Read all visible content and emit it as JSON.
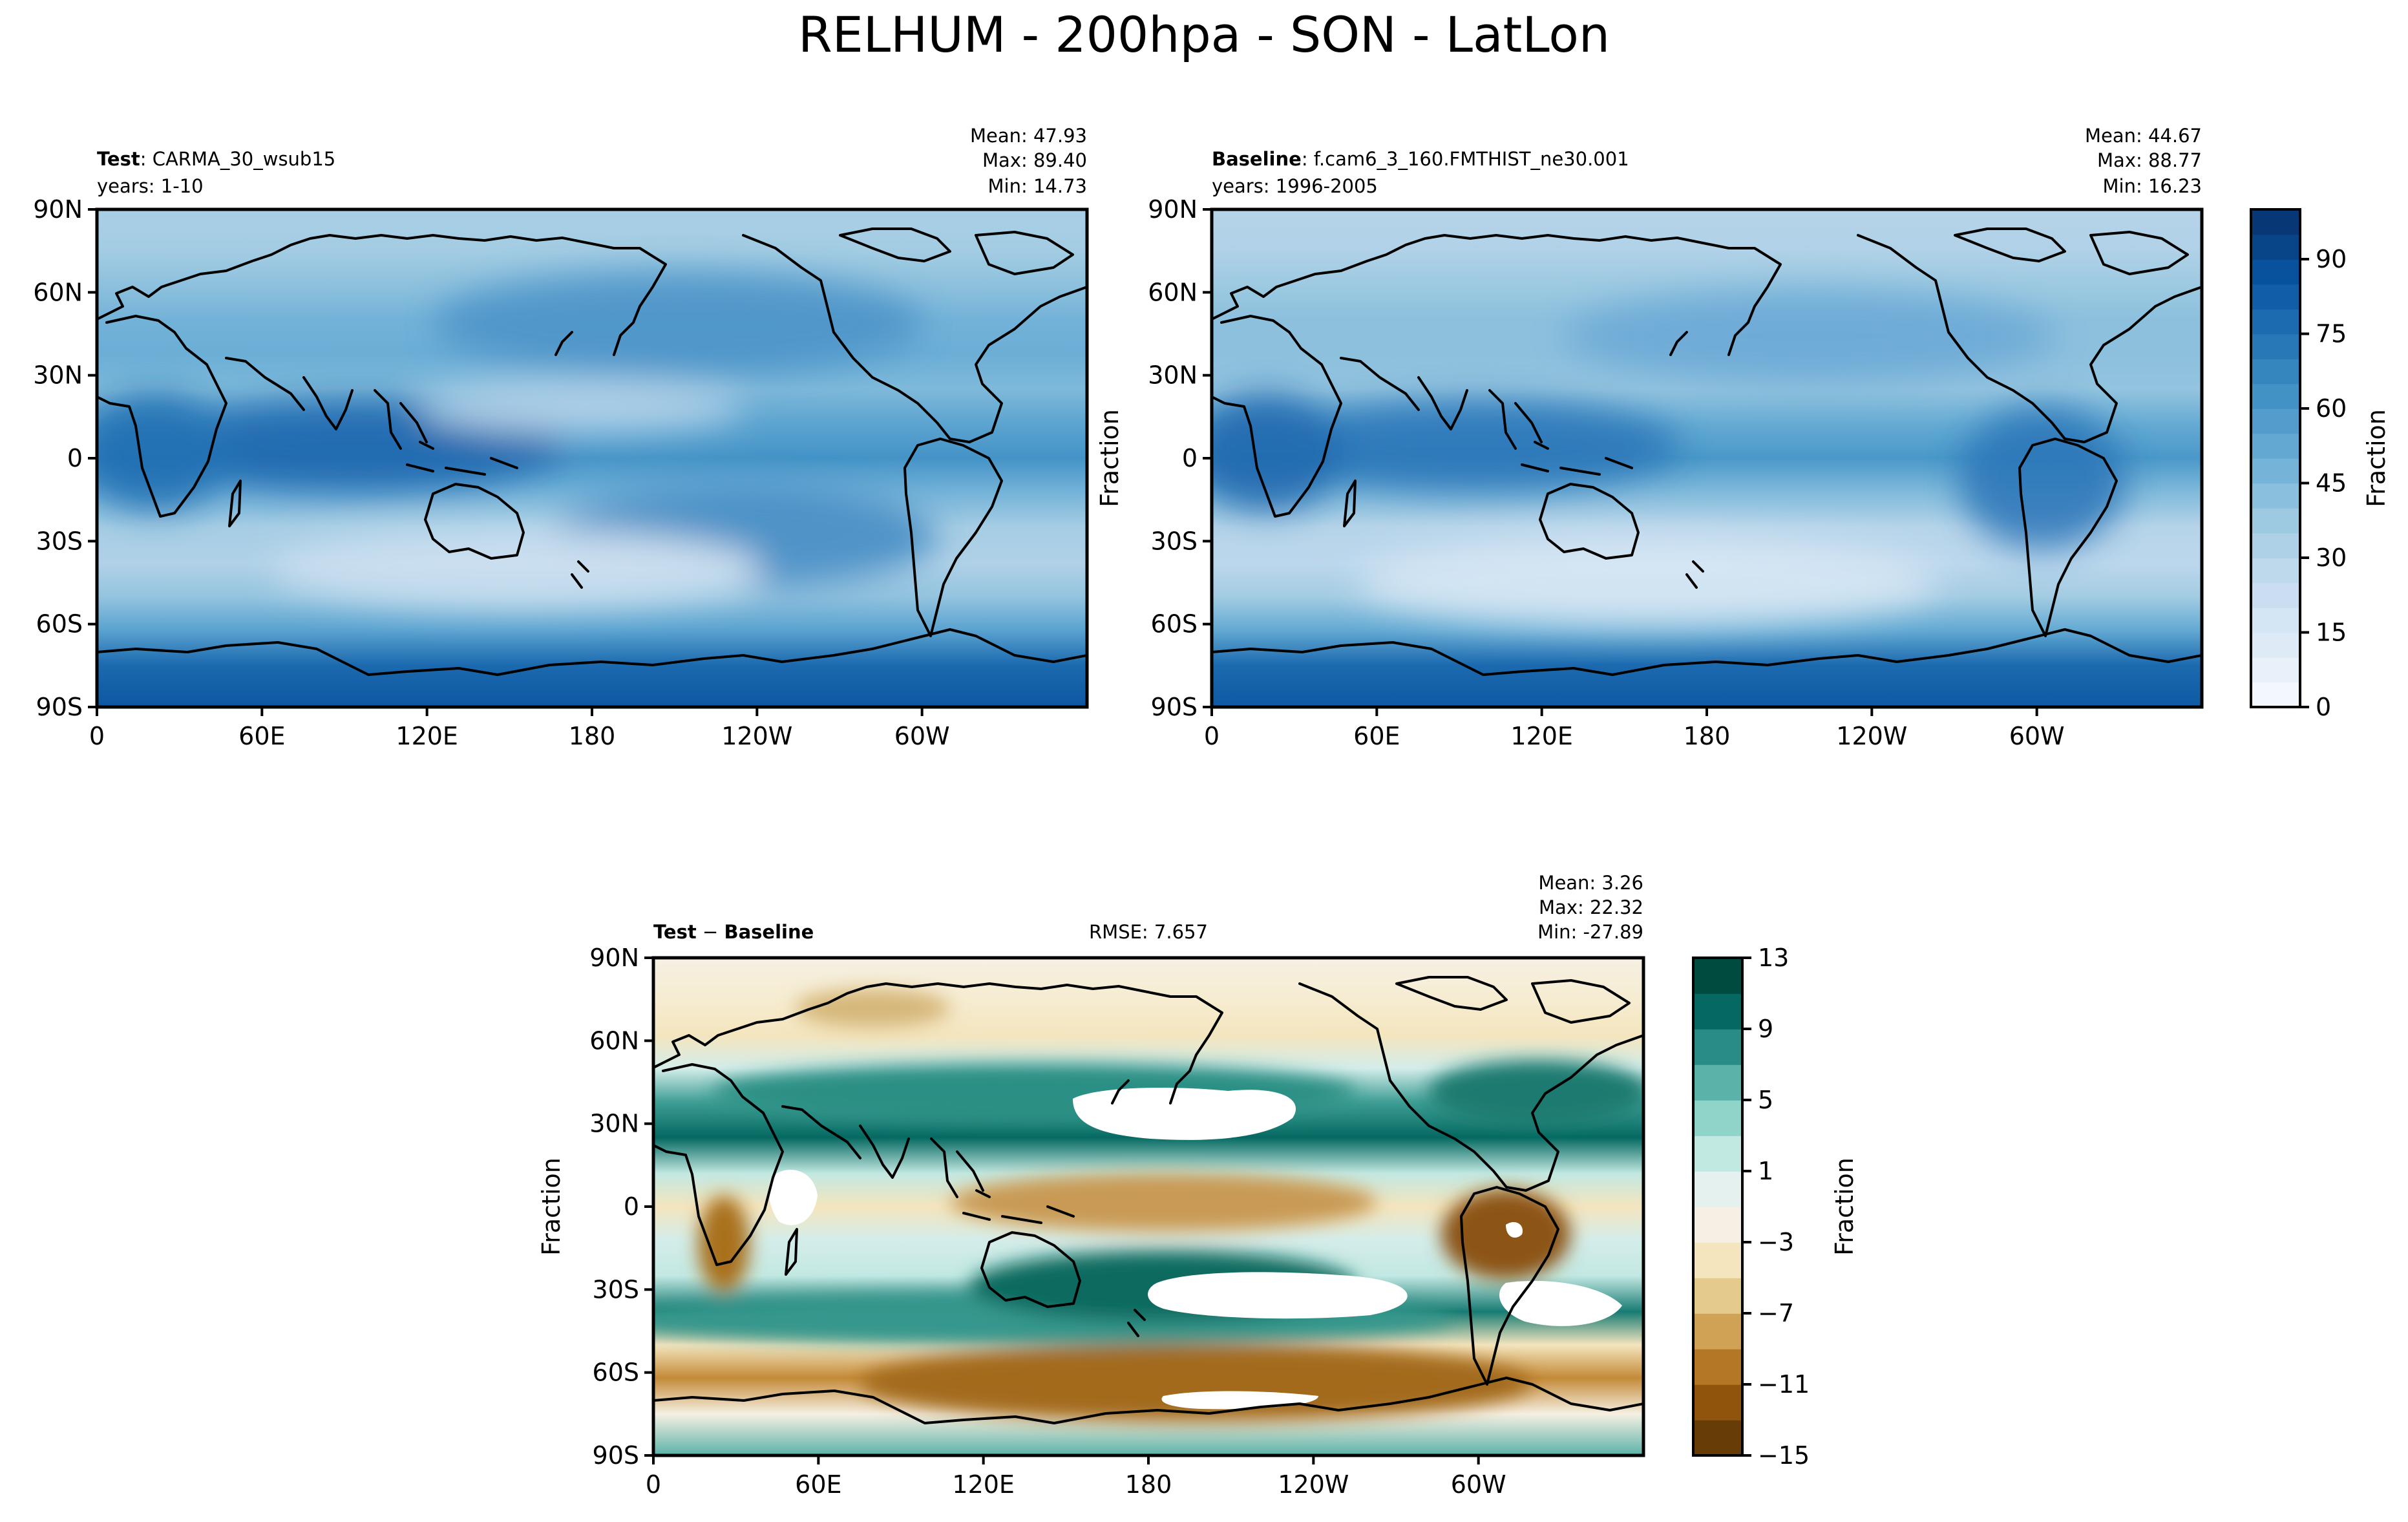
{
  "figure": {
    "title": "RELHUM - 200hpa - SON - LatLon"
  },
  "chart_data": [
    {
      "type": "heatmap",
      "panel": "test",
      "label_bold": "Test",
      "label_rest": ": CARMA_30_wsub15",
      "subtitle": "years: 1-10",
      "stats": {
        "mean": "Mean: 47.93",
        "max": "Max: 89.40",
        "min": "Min: 14.73"
      },
      "ylabel": "",
      "xlim": [
        0,
        360
      ],
      "ylim": [
        -90,
        90
      ],
      "x_ticks": [
        "0",
        "60E",
        "120E",
        "180",
        "120W",
        "60W"
      ],
      "y_ticks": [
        "90N",
        "60N",
        "30N",
        "0",
        "30S",
        "60S",
        "90S"
      ],
      "colormap": "Blues",
      "zonal_profile": {
        "lat": [
          -90,
          -75,
          -62,
          -50,
          -38,
          -25,
          -12,
          0,
          12,
          25,
          38,
          50,
          62,
          75,
          90
        ],
        "value": [
          85,
          78,
          55,
          40,
          32,
          35,
          48,
          62,
          55,
          45,
          50,
          48,
          42,
          36,
          34
        ]
      }
    },
    {
      "type": "heatmap",
      "panel": "baseline",
      "label_bold": "Baseline",
      "label_rest": ": f.cam6_3_160.FMTHIST_ne30.001",
      "subtitle": "years: 1996-2005",
      "stats": {
        "mean": "Mean: 44.67",
        "max": "Max: 88.77",
        "min": "Min: 16.23"
      },
      "ylabel": "Fraction",
      "xlim": [
        0,
        360
      ],
      "ylim": [
        -90,
        90
      ],
      "x_ticks": [
        "0",
        "60E",
        "120E",
        "180",
        "120W",
        "60W"
      ],
      "y_ticks": [
        "90N",
        "60N",
        "30N",
        "0",
        "30S",
        "60S",
        "90S"
      ],
      "colormap": "Blues",
      "zonal_profile": {
        "lat": [
          -90,
          -75,
          -62,
          -50,
          -38,
          -25,
          -12,
          0,
          12,
          25,
          38,
          50,
          62,
          75,
          90
        ],
        "value": [
          84,
          78,
          52,
          36,
          28,
          30,
          45,
          60,
          52,
          40,
          42,
          42,
          38,
          32,
          30
        ]
      },
      "colorbar": {
        "label": "Fraction",
        "ticks": [
          "0",
          "15",
          "30",
          "45",
          "60",
          "75",
          "90"
        ],
        "levels": [
          0,
          5,
          10,
          15,
          20,
          25,
          30,
          35,
          40,
          45,
          50,
          55,
          60,
          65,
          70,
          75,
          80,
          85,
          90,
          95,
          100
        ]
      }
    },
    {
      "type": "heatmap",
      "panel": "difference",
      "label_bold_a": "Test",
      "label_minus": " − ",
      "label_bold_b": "Baseline",
      "rmse": "RMSE: 7.657",
      "stats": {
        "mean": "Mean:  3.26",
        "max": "Max: 22.32",
        "min": "Min: -27.89"
      },
      "ylabel": "Fraction",
      "xlim": [
        0,
        360
      ],
      "ylim": [
        -90,
        90
      ],
      "x_ticks": [
        "0",
        "60E",
        "120E",
        "180",
        "120W",
        "60W"
      ],
      "y_ticks": [
        "90N",
        "60N",
        "30N",
        "0",
        "30S",
        "60S",
        "90S"
      ],
      "colormap": "BrBG",
      "zonal_profile": {
        "lat": [
          -90,
          -75,
          -62,
          -50,
          -38,
          -25,
          -12,
          0,
          12,
          25,
          38,
          50,
          62,
          75,
          90
        ],
        "value": [
          6,
          -2,
          -9,
          -4,
          9,
          2,
          1,
          -4,
          2,
          10,
          7,
          1,
          -4,
          -3,
          -2
        ]
      },
      "colorbar": {
        "label": "Fraction",
        "ticks": [
          "13",
          "9",
          "5",
          "1",
          "−3",
          "−7",
          "−11",
          "−15"
        ],
        "levels": [
          -15,
          -13,
          -11,
          -9,
          -7,
          -5,
          -3,
          -1,
          1,
          3,
          5,
          7,
          9,
          11,
          13
        ]
      }
    }
  ]
}
